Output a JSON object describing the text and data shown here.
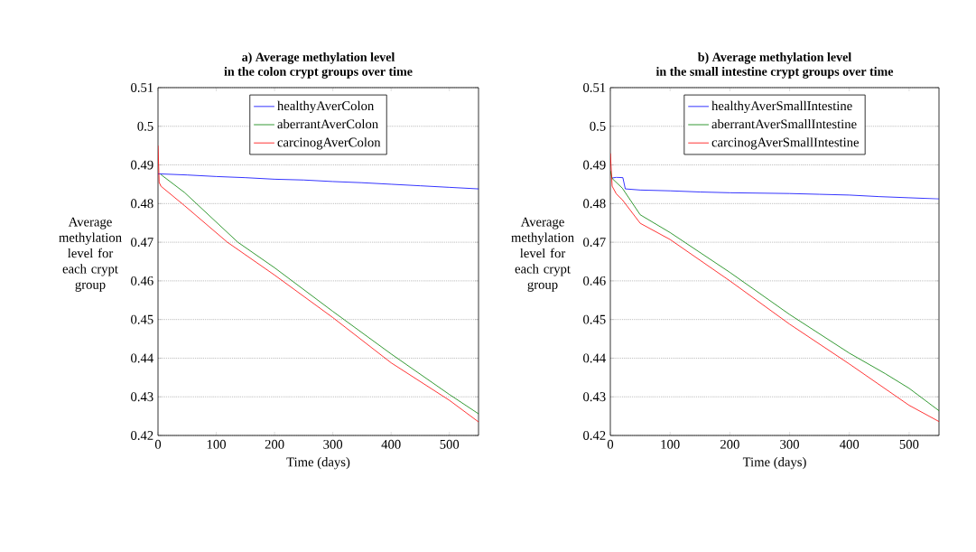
{
  "chart_data": [
    {
      "type": "line",
      "title": "a) Average methylation level",
      "subtitle": "in the colon crypt groups over time",
      "xlabel": "Time (days)",
      "ylabel": "Average methylation level for each crypt group",
      "xlim": [
        0,
        550
      ],
      "xticks": [
        0,
        100,
        200,
        300,
        400,
        500
      ],
      "ylim": [
        0.42,
        0.51
      ],
      "yticks": [
        0.42,
        0.43,
        0.44,
        0.45,
        0.46,
        0.47,
        0.48,
        0.49,
        0.5,
        0.51
      ],
      "grid": "y",
      "legend": "top",
      "marker": "none",
      "line_style": "solid",
      "series": [
        {
          "name": "healthyAverColon",
          "color": "#0000ff",
          "x": [
            0,
            50,
            100,
            150,
            200,
            250,
            300,
            350,
            400,
            450,
            500,
            550
          ],
          "values": [
            0.4877,
            0.4874,
            0.487,
            0.4867,
            0.4863,
            0.4861,
            0.4857,
            0.4854,
            0.485,
            0.4846,
            0.4842,
            0.4838
          ]
        },
        {
          "name": "aberrantAverColon",
          "color": "#008000",
          "x": [
            5,
            46,
            137,
            200,
            300,
            400,
            500,
            550
          ],
          "values": [
            0.4875,
            0.4828,
            0.47,
            0.4634,
            0.4521,
            0.4411,
            0.4306,
            0.4256
          ]
        },
        {
          "name": "carcinogAverColon",
          "color": "#ff0000",
          "x": [
            0,
            2,
            5,
            46,
            119,
            200,
            300,
            400,
            500,
            550
          ],
          "values": [
            0.495,
            0.4855,
            0.4845,
            0.4794,
            0.47,
            0.4615,
            0.4505,
            0.4388,
            0.4291,
            0.4235
          ]
        }
      ]
    },
    {
      "type": "line",
      "title": "b) Average methylation level",
      "subtitle": "in the small intestine crypt groups over time",
      "xlabel": "Time (days)",
      "ylabel": "Average methylation level for each crypt group",
      "xlim": [
        0,
        550
      ],
      "xticks": [
        0,
        100,
        200,
        300,
        400,
        500
      ],
      "ylim": [
        0.42,
        0.51
      ],
      "yticks": [
        0.42,
        0.43,
        0.44,
        0.45,
        0.46,
        0.47,
        0.48,
        0.49,
        0.5,
        0.51
      ],
      "grid": "y",
      "legend": "top",
      "marker": "none",
      "line_style": "solid",
      "series": [
        {
          "name": "healthyAverSmallIntestine",
          "color": "#0000ff",
          "x": [
            3,
            10,
            21,
            25,
            50,
            100,
            150,
            200,
            250,
            300,
            350,
            400,
            450,
            500,
            550
          ],
          "values": [
            0.4866,
            0.4868,
            0.4867,
            0.4838,
            0.4835,
            0.4833,
            0.483,
            0.4828,
            0.4827,
            0.4826,
            0.4824,
            0.4822,
            0.4818,
            0.4815,
            0.4812
          ]
        },
        {
          "name": "aberrantAverSmallIntestine",
          "color": "#008000",
          "x": [
            0,
            3,
            20,
            50,
            100,
            200,
            300,
            400,
            460,
            500,
            550
          ],
          "values": [
            0.4885,
            0.4865,
            0.484,
            0.4771,
            0.4725,
            0.4622,
            0.4513,
            0.4413,
            0.436,
            0.4322,
            0.4264
          ]
        },
        {
          "name": "carcinogAverSmallIntestine",
          "color": "#ff0000",
          "x": [
            0,
            3,
            10,
            20,
            50,
            100,
            200,
            300,
            400,
            500,
            550
          ],
          "values": [
            0.493,
            0.4845,
            0.4825,
            0.481,
            0.4749,
            0.4707,
            0.46,
            0.4488,
            0.4385,
            0.4278,
            0.4236
          ]
        }
      ]
    }
  ]
}
